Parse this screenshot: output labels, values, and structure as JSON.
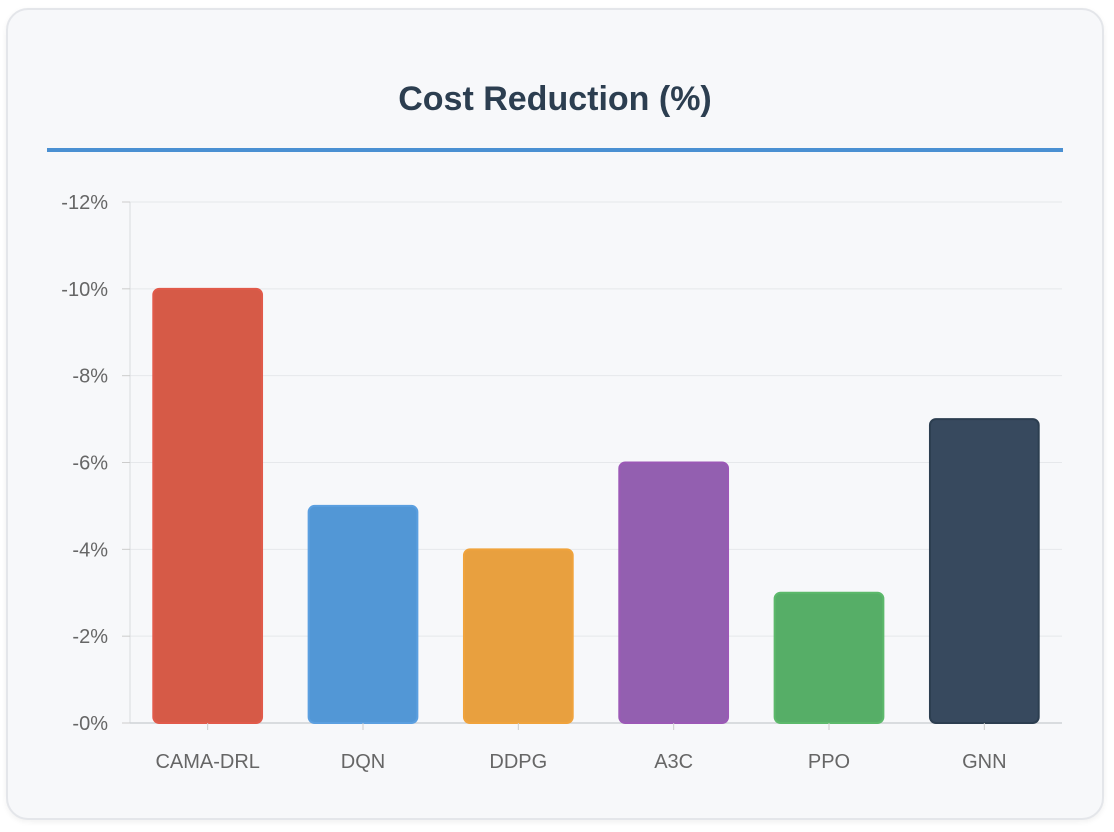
{
  "chart_data": {
    "type": "bar",
    "title": "Cost Reduction (%)",
    "xlabel": "",
    "ylabel": "",
    "categories": [
      "CAMA-DRL",
      "DQN",
      "DDPG",
      "A3C",
      "PPO",
      "GNN"
    ],
    "values": [
      -10,
      -5,
      -4,
      -6,
      -3,
      -7
    ],
    "colors": [
      "#d65a47",
      "#5297d6",
      "#e8a03f",
      "#935fb0",
      "#56ae67",
      "#37495e"
    ],
    "border_colors": [
      "#e15a4a",
      "#5b9fe0",
      "#f0a33c",
      "#9b59b6",
      "#5cb96b",
      "#2c3e50"
    ],
    "ylim": [
      0,
      -12
    ],
    "yticks": [
      {
        "value": 0,
        "label": "-0%"
      },
      {
        "value": -2,
        "label": "-2%"
      },
      {
        "value": -4,
        "label": "-4%"
      },
      {
        "value": -6,
        "label": "-6%"
      },
      {
        "value": -8,
        "label": "-8%"
      },
      {
        "value": -10,
        "label": "-10%"
      },
      {
        "value": -12,
        "label": "-12%"
      }
    ],
    "grid": true,
    "legend": "none"
  }
}
